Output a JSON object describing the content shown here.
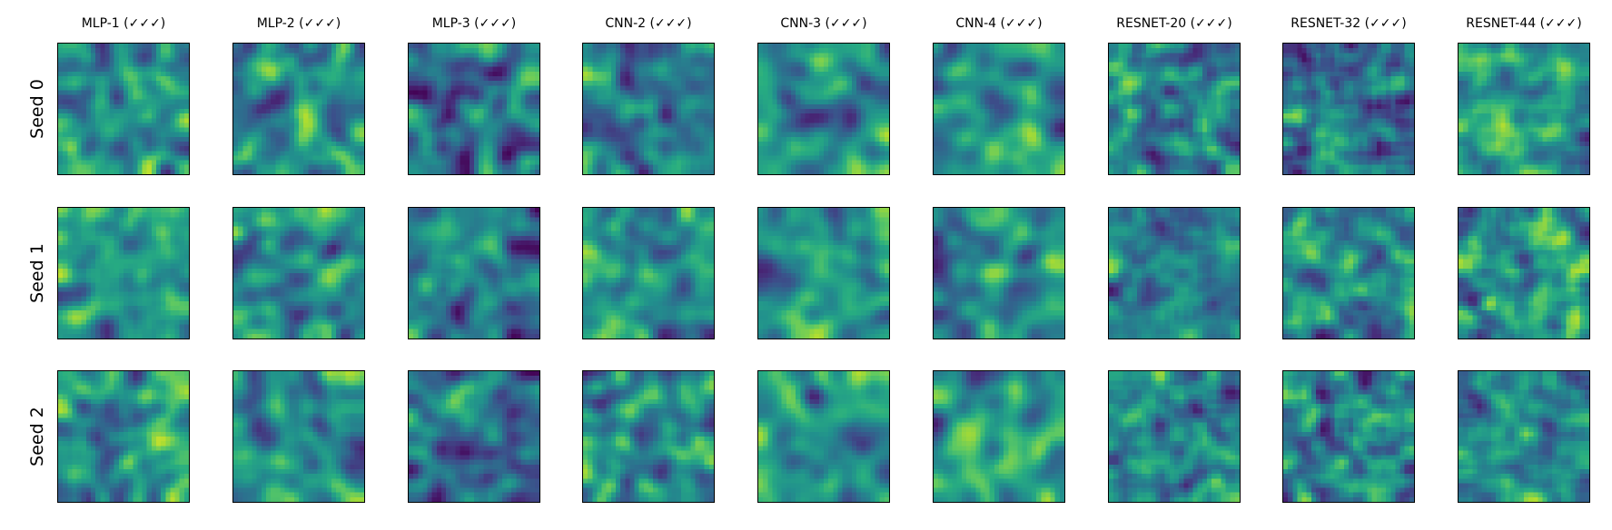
{
  "figure": {
    "columns": [
      {
        "title": "MLP-1 (✓✓✓)"
      },
      {
        "title": "MLP-2 (✓✓✓)"
      },
      {
        "title": "MLP-3 (✓✓✓)"
      },
      {
        "title": "CNN-2 (✓✓✓)"
      },
      {
        "title": "CNN-3 (✓✓✓)"
      },
      {
        "title": "CNN-4 (✓✓✓)"
      },
      {
        "title": "RESNET-20 (✓✓✓)"
      },
      {
        "title": "RESNET-32 (✓✓✓)"
      },
      {
        "title": "RESNET-44 (✓✓✓)"
      }
    ],
    "rows": [
      {
        "label": "Seed 0"
      },
      {
        "label": "Seed 1"
      },
      {
        "label": "Seed 2"
      }
    ],
    "colormap": "viridis",
    "heatmap_resolution": 28
  }
}
